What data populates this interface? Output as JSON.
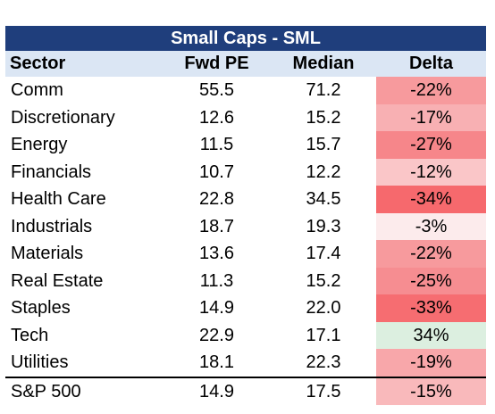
{
  "chart_data": {
    "type": "table",
    "title": "Small Caps - SML",
    "columns": [
      "Sector",
      "Fwd PE",
      "Median",
      "Delta"
    ],
    "rows": [
      {
        "sector": "Comm",
        "fwd_pe": "55.5",
        "median": "71.2",
        "delta": "-22%",
        "delta_value": -22,
        "color": "#f79a9d"
      },
      {
        "sector": "Discretionary",
        "fwd_pe": "12.6",
        "median": "15.2",
        "delta": "-17%",
        "delta_value": -17,
        "color": "#f8b0b3"
      },
      {
        "sector": "Energy",
        "fwd_pe": "11.5",
        "median": "15.7",
        "delta": "-27%",
        "delta_value": -27,
        "color": "#f6868a"
      },
      {
        "sector": "Financials",
        "fwd_pe": "10.7",
        "median": "12.2",
        "delta": "-12%",
        "delta_value": -12,
        "color": "#fac6c8"
      },
      {
        "sector": "Health Care",
        "fwd_pe": "22.8",
        "median": "34.5",
        "delta": "-34%",
        "delta_value": -34,
        "color": "#f6696d"
      },
      {
        "sector": "Industrials",
        "fwd_pe": "18.7",
        "median": "19.3",
        "delta": "-3%",
        "delta_value": -3,
        "color": "#fcebec"
      },
      {
        "sector": "Materials",
        "fwd_pe": "13.6",
        "median": "17.4",
        "delta": "-22%",
        "delta_value": -22,
        "color": "#f79a9d"
      },
      {
        "sector": "Real Estate",
        "fwd_pe": "11.3",
        "median": "15.2",
        "delta": "-25%",
        "delta_value": -25,
        "color": "#f68d91"
      },
      {
        "sector": "Staples",
        "fwd_pe": "14.9",
        "median": "22.0",
        "delta": "-33%",
        "delta_value": -33,
        "color": "#f66d71"
      },
      {
        "sector": "Tech",
        "fwd_pe": "22.9",
        "median": "17.1",
        "delta": "34%",
        "delta_value": 34,
        "color": "#dcefe0"
      },
      {
        "sector": "Utilities",
        "fwd_pe": "18.1",
        "median": "22.3",
        "delta": "-19%",
        "delta_value": -19,
        "color": "#f8a7aa"
      }
    ],
    "summary": {
      "sector": "S&P 500",
      "fwd_pe": "14.9",
      "median": "17.5",
      "delta": "-15%",
      "delta_value": -15,
      "color": "#f9b9bb"
    }
  }
}
